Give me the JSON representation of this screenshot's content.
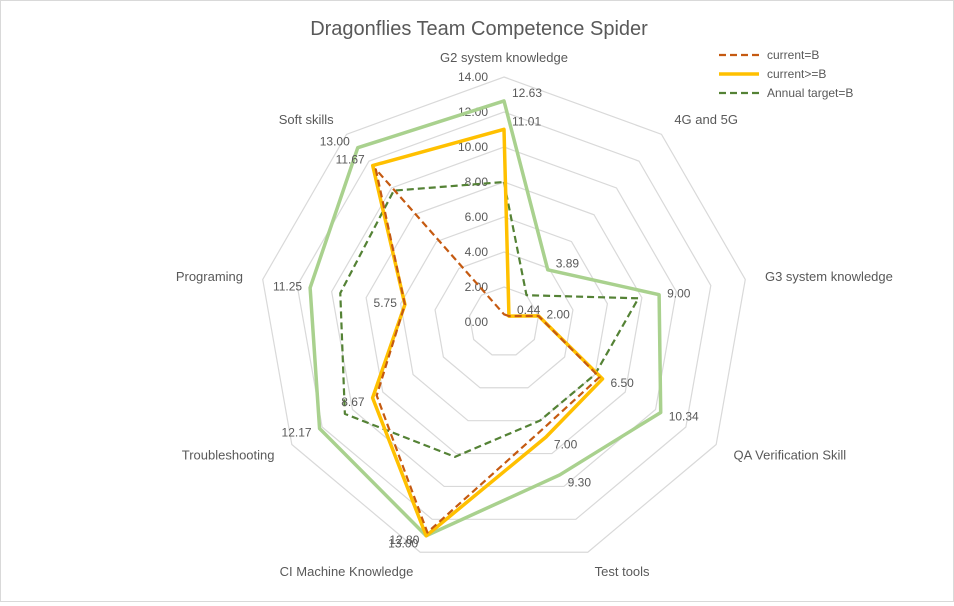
{
  "chart_data": {
    "type": "radar",
    "title": "Dragonflies Team Competence Spider",
    "categories": [
      "G2 system knowledge",
      "4G and 5G",
      "G3 system knowledge",
      "QA Verification Skill",
      "Test tools",
      "CI Machine Knowledge",
      "Troubleshooting",
      "Programing",
      "Soft skills"
    ],
    "axis": {
      "min": 0,
      "max": 14,
      "step": 2,
      "tick_labels": [
        "0.00",
        "2.00",
        "4.00",
        "6.00",
        "8.00",
        "10.00",
        "12.00",
        "14.00"
      ],
      "grid": true
    },
    "legend": {
      "position": "top-right"
    },
    "series": [
      {
        "name": "current=B",
        "color": "#c55a11",
        "dash": "dashed",
        "values": [
          0.44,
          0.44,
          2.0,
          6.3,
          6.5,
          12.8,
          8.4,
          5.75,
          11.4
        ]
      },
      {
        "name": "current>=B",
        "color": "#ffc000",
        "dash": "solid",
        "values": [
          11.01,
          0.44,
          2.0,
          6.5,
          7.0,
          13.0,
          8.67,
          5.75,
          11.67
        ]
      },
      {
        "name": "Annual target=B",
        "color": "#548235",
        "dash": "dashed",
        "values": [
          8.0,
          2.0,
          7.8,
          6.0,
          6.0,
          8.2,
          10.5,
          9.5,
          9.8
        ]
      },
      {
        "name": "",
        "color": "#a9d18e",
        "dash": "solid",
        "values": [
          12.63,
          3.89,
          9.0,
          10.34,
          9.3,
          13.0,
          12.17,
          11.25,
          13.0
        ]
      }
    ],
    "data_labels": [
      {
        "text": "12.63",
        "category": 0,
        "value": 12.63
      },
      {
        "text": "11.01",
        "category": 0,
        "value": 11.01
      },
      {
        "text": "3.89",
        "category": 1,
        "value": 3.89
      },
      {
        "text": "0.44",
        "category": 1,
        "value": 0.44
      },
      {
        "text": "9.00",
        "category": 2,
        "value": 9.0
      },
      {
        "text": "2.00",
        "category": 2,
        "value": 2.0
      },
      {
        "text": "10.34",
        "category": 3,
        "value": 10.34
      },
      {
        "text": "6.50",
        "category": 3,
        "value": 6.5
      },
      {
        "text": "9.30",
        "category": 4,
        "value": 9.3
      },
      {
        "text": "7.00",
        "category": 4,
        "value": 7.0
      },
      {
        "text": "13.00",
        "category": 5,
        "value": 13.0
      },
      {
        "text": "12.80",
        "category": 5,
        "value": 12.8
      },
      {
        "text": "12.17",
        "category": 6,
        "value": 12.17
      },
      {
        "text": "8.67",
        "category": 6,
        "value": 8.67
      },
      {
        "text": "11.25",
        "category": 7,
        "value": 11.25
      },
      {
        "text": "5.75",
        "category": 7,
        "value": 5.75
      },
      {
        "text": "13.00",
        "category": 8,
        "value": 13.0
      },
      {
        "text": "11.67",
        "category": 8,
        "value": 11.67
      }
    ]
  }
}
